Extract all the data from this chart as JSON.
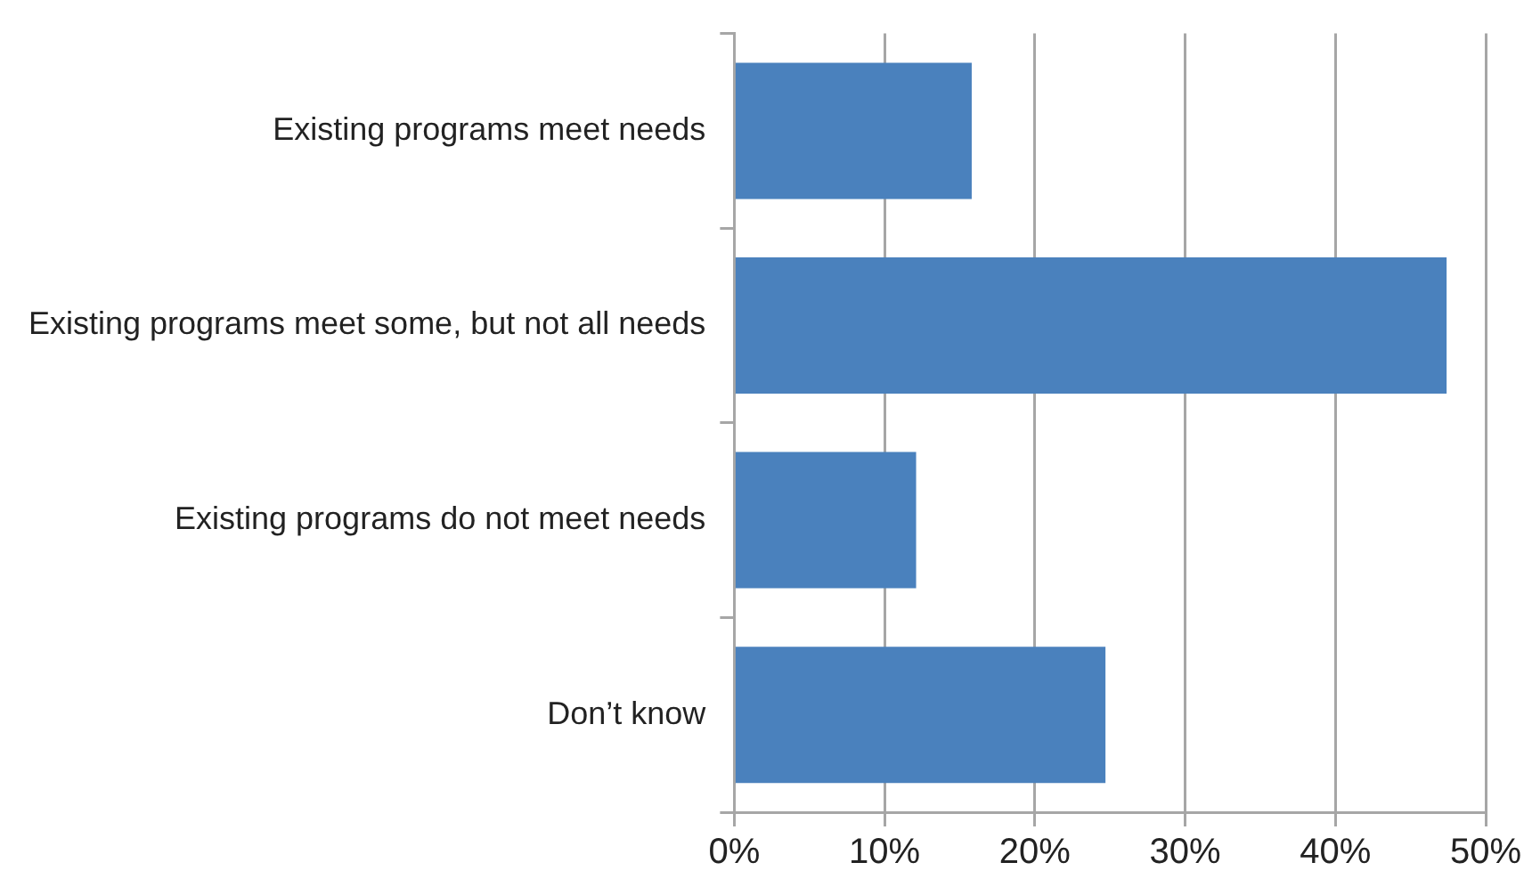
{
  "chart_data": {
    "type": "bar",
    "orientation": "horizontal",
    "categories": [
      "Existing programs meet needs",
      "Existing programs meet some, but not all needs",
      "Existing programs do not meet needs",
      "Don’t know"
    ],
    "values": [
      15.8,
      47.4,
      12.1,
      24.7
    ],
    "color": "#4a81bd",
    "xlim": [
      0,
      50
    ],
    "xticks": [
      {
        "value": 0,
        "label": "0%"
      },
      {
        "value": 10,
        "label": "10%"
      },
      {
        "value": 20,
        "label": "20%"
      },
      {
        "value": 30,
        "label": "30%"
      },
      {
        "value": 40,
        "label": "40%"
      },
      {
        "value": 50,
        "label": "50%"
      }
    ],
    "grid": "x",
    "legend": false
  }
}
